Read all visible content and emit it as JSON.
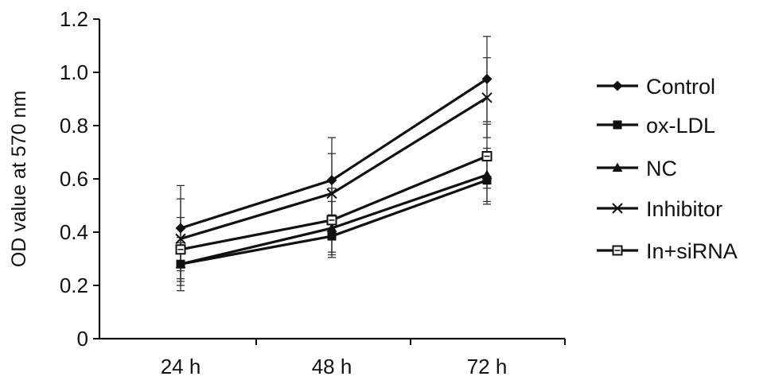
{
  "chart_data": {
    "type": "line",
    "title": "",
    "xlabel": "",
    "ylabel": "OD value at 570 nm",
    "categories": [
      "24 h",
      "48 h",
      "72 h"
    ],
    "ylim": [
      0,
      1.2
    ],
    "yticks": [
      "0",
      "0.2",
      "0.4",
      "0.6",
      "0.8",
      "1.0",
      "1.2"
    ],
    "grid": false,
    "legend_position": "right",
    "series": [
      {
        "name": "Control",
        "marker": "diamond",
        "values": [
          0.415,
          0.595,
          0.975
        ],
        "errors": [
          0.16,
          0.16,
          0.16
        ]
      },
      {
        "name": "ox-LDL",
        "marker": "square",
        "values": [
          0.28,
          0.385,
          0.595
        ],
        "errors": [
          0.08,
          0.08,
          0.09
        ]
      },
      {
        "name": "NC",
        "marker": "triangle",
        "values": [
          0.28,
          0.415,
          0.615
        ],
        "errors": [
          0.1,
          0.1,
          0.1
        ]
      },
      {
        "name": "Inhibitor",
        "marker": "x",
        "values": [
          0.375,
          0.545,
          0.905
        ],
        "errors": [
          0.15,
          0.15,
          0.15
        ]
      },
      {
        "name": "In+siRNA",
        "marker": "square-open",
        "values": [
          0.335,
          0.445,
          0.685
        ],
        "errors": [
          0.12,
          0.12,
          0.12
        ]
      }
    ]
  }
}
